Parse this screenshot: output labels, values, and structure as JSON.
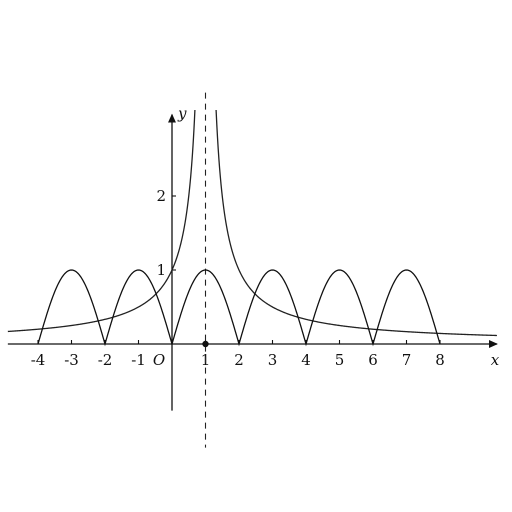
{
  "chart_data": {
    "type": "line",
    "xlabel": "x",
    "ylabel": "y",
    "origin_label": "O",
    "xlim": [
      -4.9,
      9.7
    ],
    "ylim": [
      -0.9,
      3.1
    ],
    "x_ticks": [
      -4,
      -3,
      -2,
      -1,
      1,
      2,
      3,
      4,
      5,
      6,
      7,
      8
    ],
    "x_tick_labels": [
      "-4",
      "-3",
      "-2",
      "-1",
      "1",
      "2",
      "3",
      "4",
      "5",
      "6",
      "7",
      "8"
    ],
    "y_ticks": [
      1,
      2
    ],
    "y_tick_labels": [
      "1",
      "2"
    ],
    "asymptote_x": 1,
    "marked_point": {
      "x": 1,
      "y": 0
    },
    "grid": false,
    "series": [
      {
        "kind": "periodic-sine-arcs",
        "description_values": "y = |sin(pi*x/2)| on [-4, 8]",
        "x_start": -4,
        "x_end": 8,
        "zeros": [
          -4,
          -2,
          0,
          2,
          4,
          6,
          8
        ],
        "peaks": [
          [
            -3,
            1
          ],
          [
            -1,
            1
          ],
          [
            1,
            1
          ],
          [
            3,
            1
          ],
          [
            5,
            1
          ],
          [
            7,
            1
          ]
        ],
        "color": "#111111"
      },
      {
        "kind": "reciprocal-abs",
        "description_values": "y = 1/|x-1|",
        "center": 1,
        "x_range": [
          -4.9,
          9.7
        ],
        "color": "#222222"
      }
    ]
  }
}
